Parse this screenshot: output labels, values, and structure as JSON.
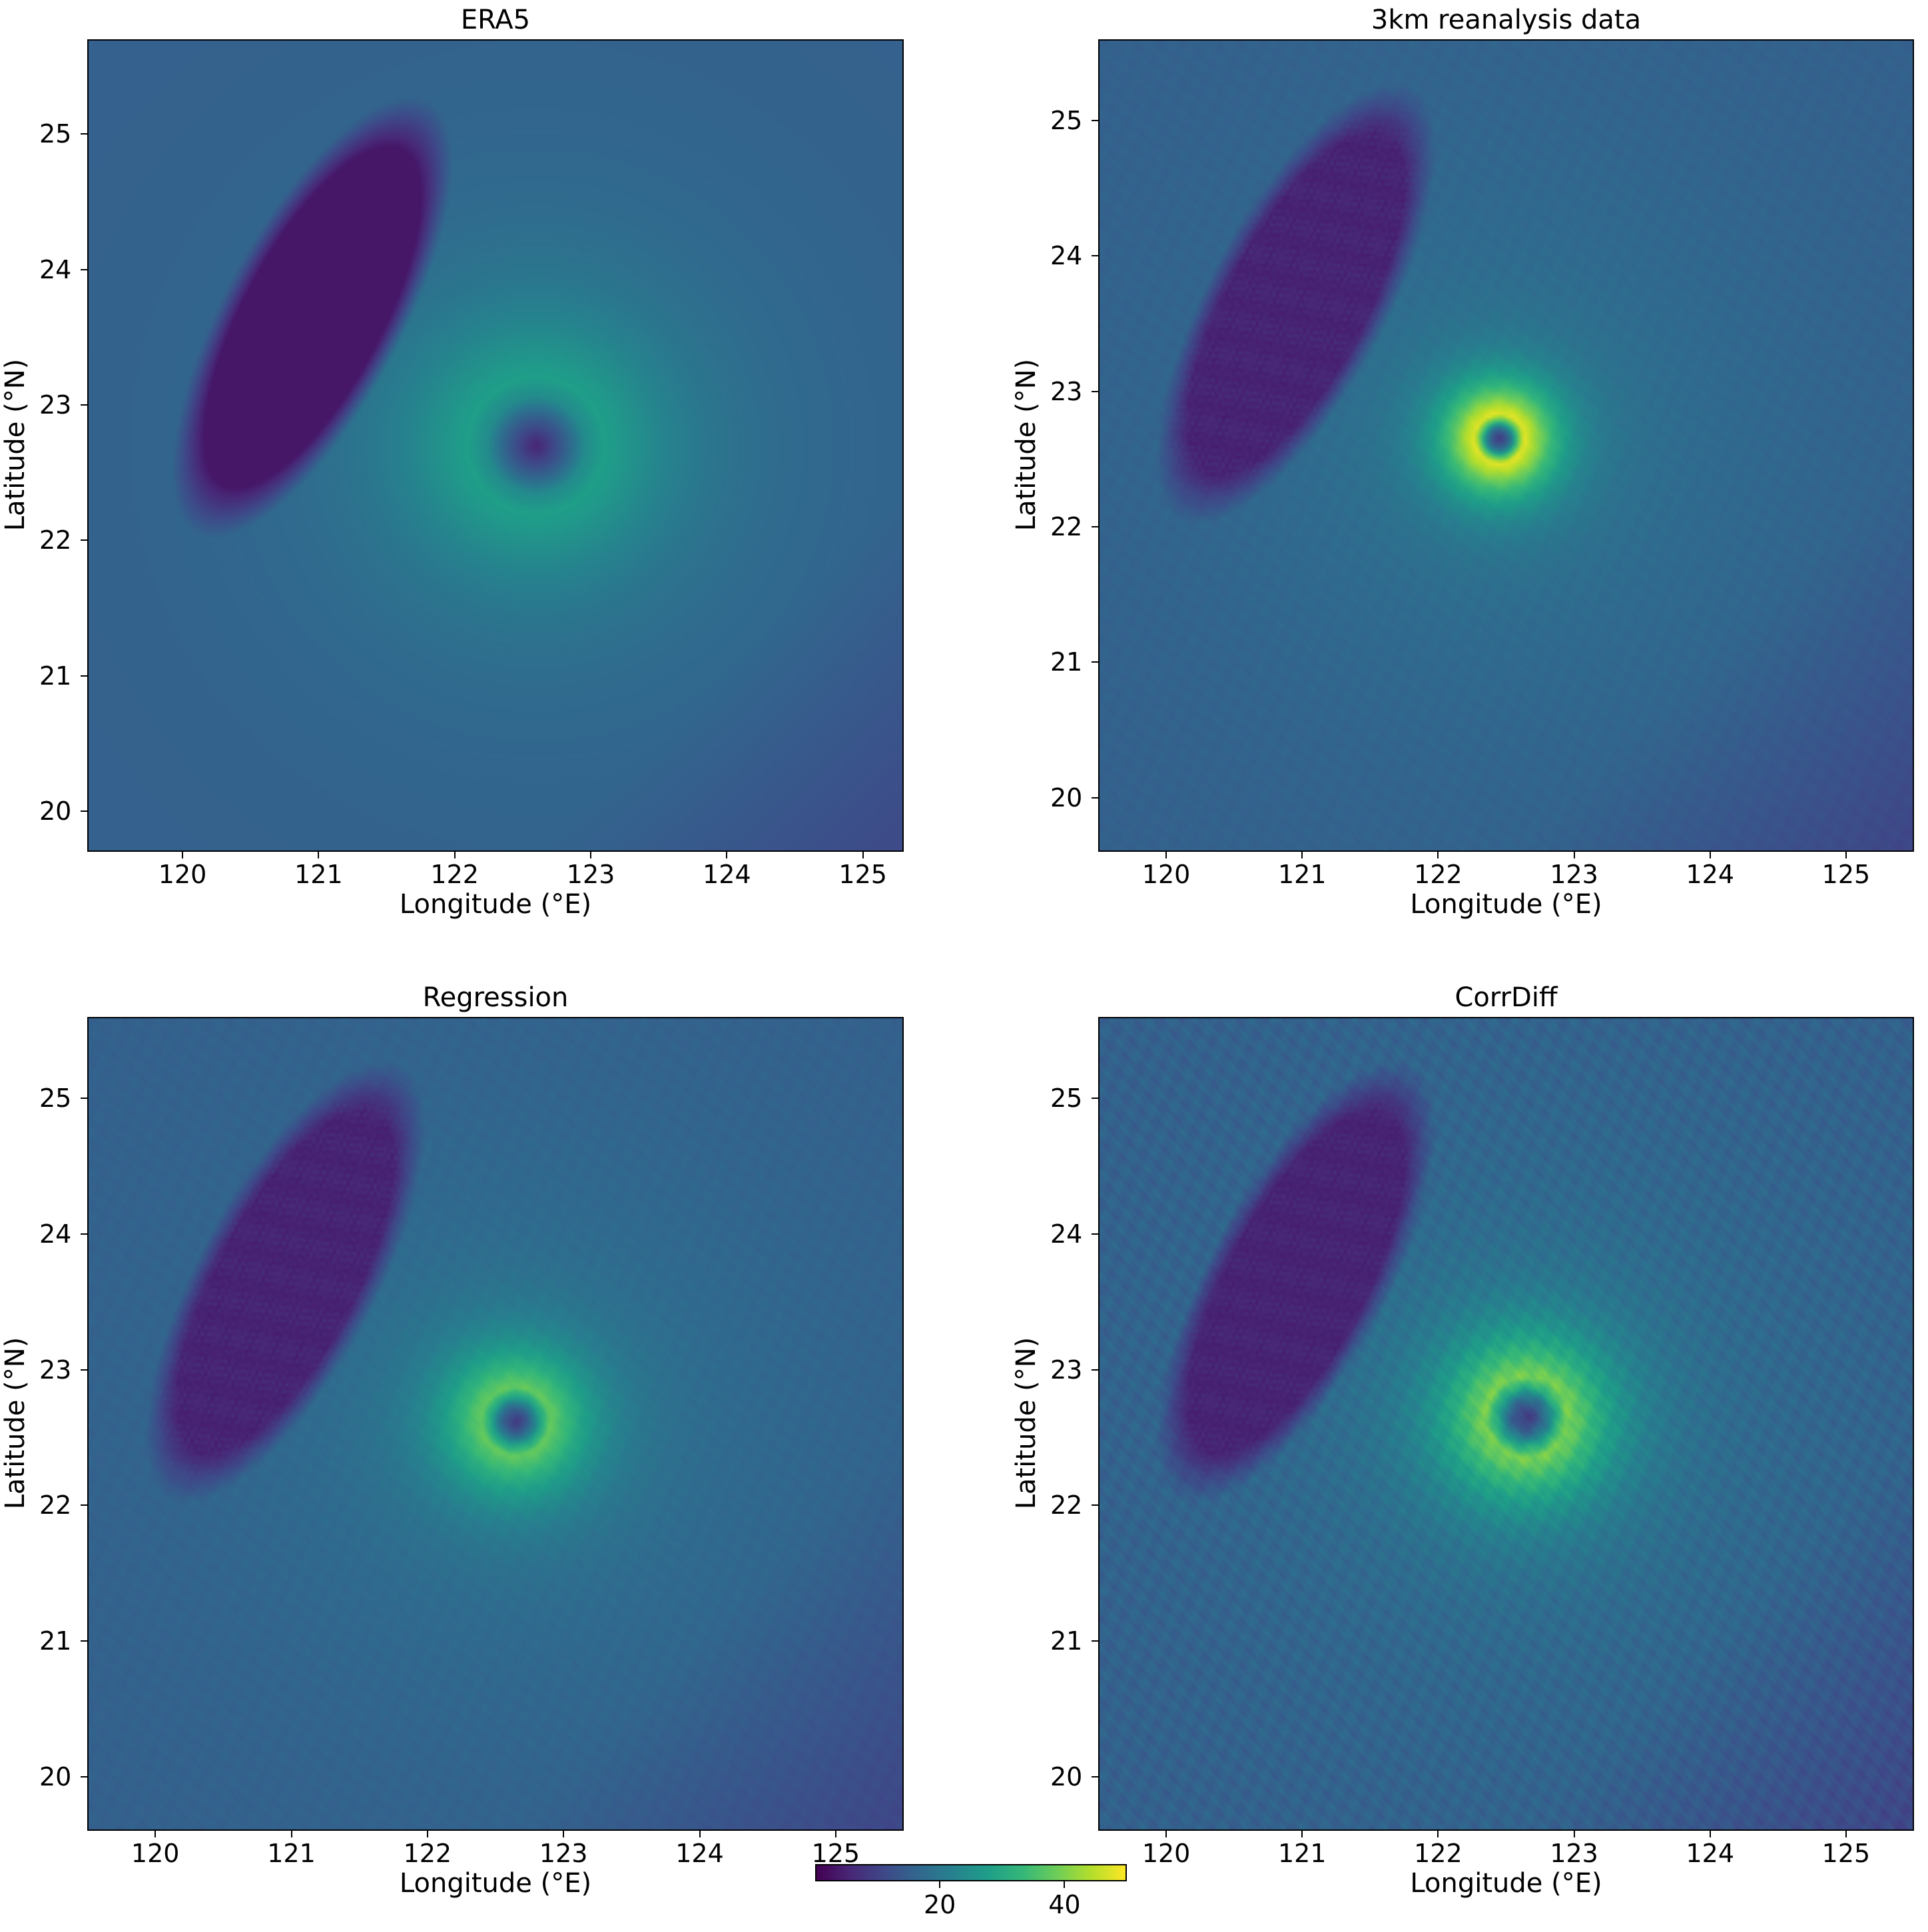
{
  "chart_data": [
    {
      "type": "heatmap",
      "title": "ERA5",
      "xlabel": "Longitude (°E)",
      "ylabel": "Latitude (°N)",
      "xlim": [
        119.3,
        125.3
      ],
      "ylim": [
        19.7,
        25.7
      ],
      "xticks": [
        120,
        121,
        122,
        123,
        124,
        125
      ],
      "yticks": [
        20,
        21,
        22,
        23,
        24,
        25
      ],
      "colormap": "viridis",
      "features": {
        "eye_lon": 122.6,
        "eye_lat": 22.7,
        "peak_value": 28,
        "eye_value": 5,
        "land_value": 3,
        "background_value": 15,
        "radius_of_max_deg": 0.5
      }
    },
    {
      "type": "heatmap",
      "title": "3km reanalysis data",
      "xlabel": "Longitude (°E)",
      "ylabel": "Latitude (°N)",
      "xlim": [
        119.5,
        125.5
      ],
      "ylim": [
        19.6,
        25.6
      ],
      "xticks": [
        120,
        121,
        122,
        123,
        124,
        125
      ],
      "yticks": [
        20,
        21,
        22,
        23,
        24,
        25
      ],
      "colormap": "viridis",
      "features": {
        "eye_lon": 122.45,
        "eye_lat": 22.65,
        "peak_value": 48,
        "eye_value": 8,
        "land_value": 4,
        "background_value": 15,
        "radius_of_max_deg": 0.18
      }
    },
    {
      "type": "heatmap",
      "title": "Regression",
      "xlabel": "Longitude (°E)",
      "ylabel": "Latitude (°N)",
      "xlim": [
        119.5,
        125.5
      ],
      "ylim": [
        19.6,
        25.6
      ],
      "xticks": [
        120,
        121,
        122,
        123,
        124,
        125
      ],
      "yticks": [
        20,
        21,
        22,
        23,
        24,
        25
      ],
      "colormap": "viridis",
      "features": {
        "eye_lon": 122.65,
        "eye_lat": 22.62,
        "peak_value": 38,
        "eye_value": 8,
        "land_value": 4,
        "background_value": 15,
        "radius_of_max_deg": 0.25
      }
    },
    {
      "type": "heatmap",
      "title": "CorrDiff",
      "xlabel": "Longitude (°E)",
      "ylabel": "Latitude (°N)",
      "xlim": [
        119.5,
        125.5
      ],
      "ylim": [
        19.6,
        25.6
      ],
      "xticks": [
        120,
        121,
        122,
        123,
        124,
        125
      ],
      "yticks": [
        20,
        21,
        22,
        23,
        24,
        25
      ],
      "colormap": "viridis",
      "features": {
        "eye_lon": 122.65,
        "eye_lat": 22.65,
        "peak_value": 40,
        "eye_value": 8,
        "land_value": 4,
        "background_value": 15,
        "radius_of_max_deg": 0.3
      }
    }
  ],
  "colorbar": {
    "range": [
      0,
      50
    ],
    "ticks": [
      20,
      40
    ],
    "colormap": "viridis"
  }
}
